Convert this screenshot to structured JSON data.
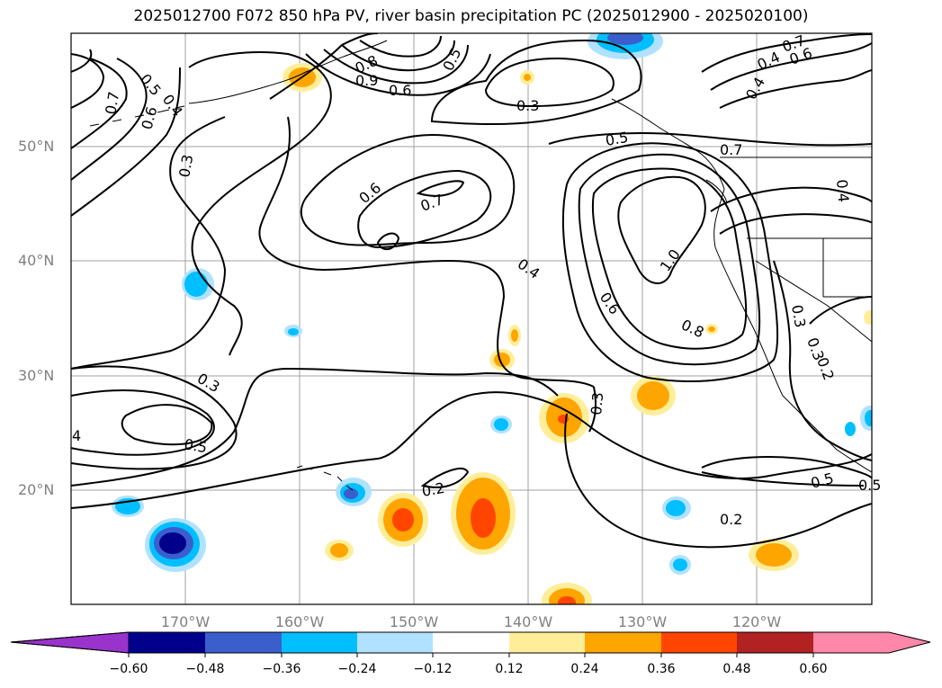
{
  "title": "2025012700 F072 850 hPa PV, river basin precipitation PC (2025012900 - 2025020100)",
  "map": {
    "lat_labels": [
      "50°N",
      "40°N",
      "30°N",
      "20°N"
    ],
    "lon_labels": [
      "170°W",
      "160°W",
      "150°W",
      "140°W",
      "130°W",
      "120°W"
    ],
    "gridline_color": "#a0a0a0",
    "contour_color": "#000000",
    "contour_labels": [
      "0.5",
      "0.4",
      "0.7",
      "0.6",
      "0.3",
      "0.9",
      "0.6",
      "0.8",
      "0.5",
      "0.3",
      "0.7",
      "0.4",
      "0.6",
      "0.4",
      "0.5",
      "0.7",
      "0.6",
      "0.7",
      "1.0",
      "0.4",
      "0.6",
      "0.8",
      "0.3",
      "0.3",
      "0.5",
      "4",
      "0.2",
      "0.2",
      "0.5",
      "0.3",
      "0.4",
      "0.3",
      "0.2",
      "0.5"
    ]
  },
  "colorbar": {
    "ticks": [
      "−0.60",
      "−0.48",
      "−0.36",
      "−0.24",
      "−0.12",
      "0.12",
      "0.24",
      "0.36",
      "0.48",
      "0.60"
    ],
    "colors": [
      "#9933cc",
      "#00008b",
      "#3a5fcd",
      "#00bfff",
      "#b0e2ff",
      "#ffffff",
      "#ffee99",
      "#ffa500",
      "#ff4500",
      "#b22222",
      "#ff88aa"
    ]
  }
}
